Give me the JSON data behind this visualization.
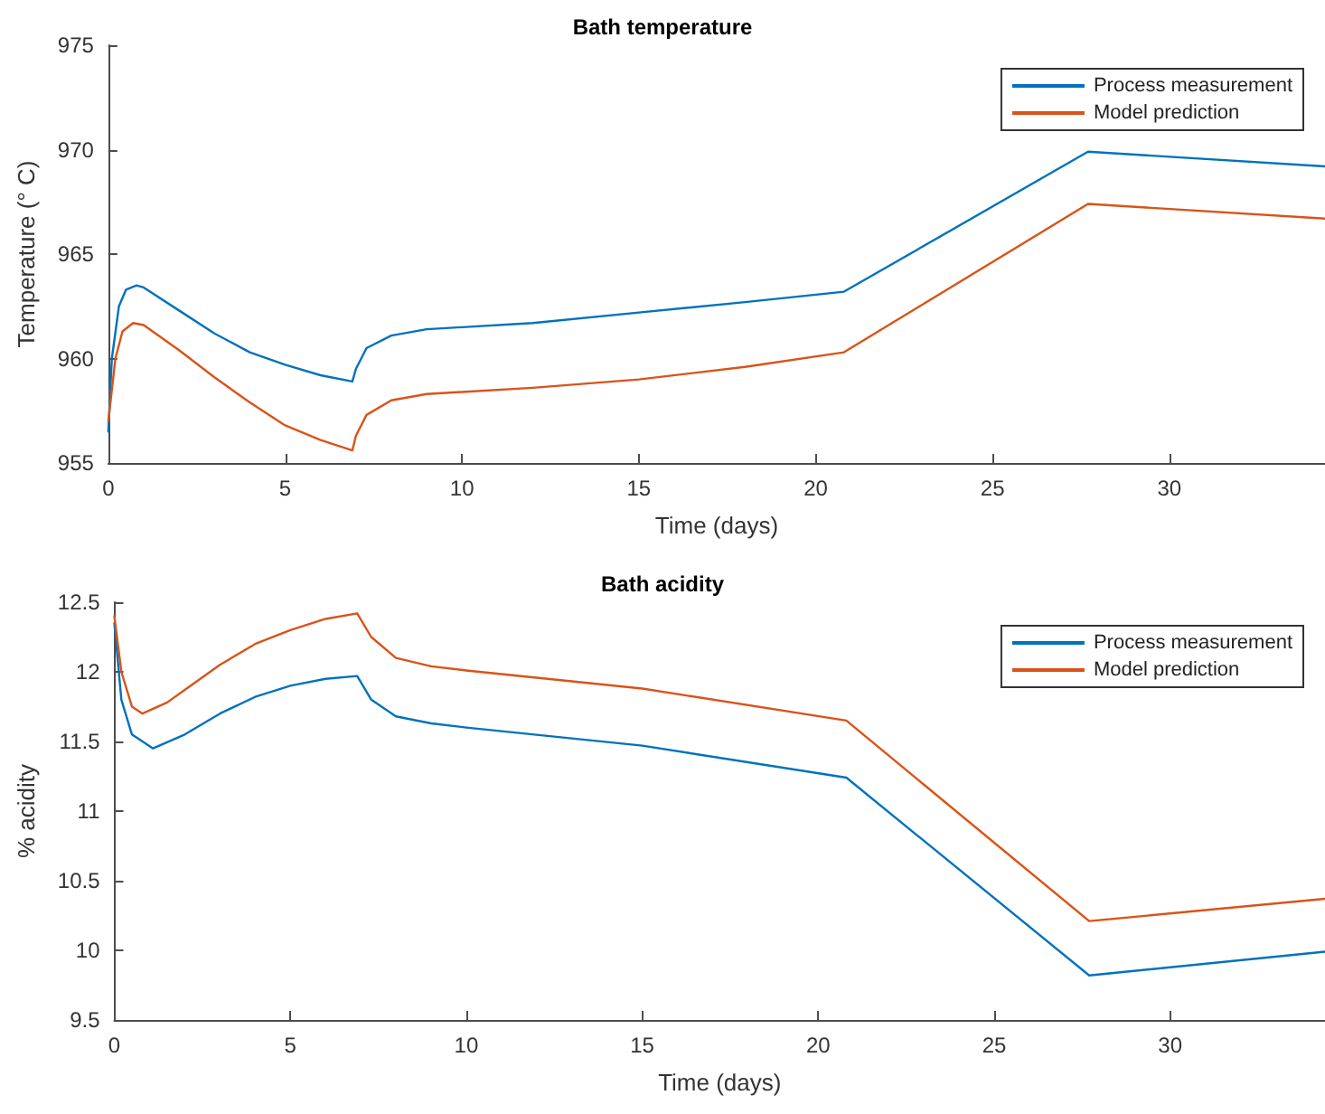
{
  "chart_data": [
    {
      "type": "line",
      "title": "Bath temperature",
      "xlabel": "Time (days)",
      "ylabel": "Temperature (° C)",
      "xlim": [
        0,
        34.4
      ],
      "xticks": [
        0,
        5,
        10,
        15,
        20,
        25,
        30
      ],
      "ylim": [
        955,
        975
      ],
      "yticks": [
        955,
        960,
        965,
        970,
        975
      ],
      "grid": false,
      "legend": "top right",
      "marker": "none",
      "series": [
        {
          "name": "Process measurement",
          "color": "#0072bd",
          "x": [
            0,
            0.1,
            0.3,
            0.5,
            0.8,
            1,
            2,
            3,
            4,
            5,
            6,
            6.9,
            7.0,
            7.3,
            8,
            9,
            10,
            12,
            15,
            18,
            20.8,
            27.7,
            34.4
          ],
          "values": [
            956.5,
            960,
            962.5,
            963.3,
            963.5,
            963.4,
            962.3,
            961.2,
            960.3,
            959.7,
            959.2,
            958.9,
            959.5,
            960.5,
            961.1,
            961.4,
            961.5,
            961.7,
            962.2,
            962.7,
            963.2,
            969.9,
            969.2
          ]
        },
        {
          "name": "Model prediction",
          "color": "#d95319",
          "x": [
            0,
            0.2,
            0.4,
            0.7,
            1,
            2,
            3,
            4,
            5,
            6,
            6.9,
            7.0,
            7.3,
            8,
            9,
            10,
            12,
            15,
            18,
            20.8,
            27.7,
            34.4
          ],
          "values": [
            957,
            960,
            961.3,
            961.7,
            961.6,
            960.4,
            959.1,
            957.9,
            956.8,
            956.1,
            955.6,
            956.3,
            957.3,
            958,
            958.3,
            958.4,
            958.6,
            959,
            959.6,
            960.3,
            967.4,
            966.7
          ]
        }
      ]
    },
    {
      "type": "line",
      "title": "Bath acidity",
      "xlabel": "Time (days)",
      "ylabel": "% acidity",
      "xlim": [
        0,
        34.4
      ],
      "xticks": [
        0,
        5,
        10,
        15,
        20,
        25,
        30
      ],
      "ylim": [
        9.5,
        12.5
      ],
      "yticks": [
        9.5,
        10,
        10.5,
        11,
        11.5,
        12,
        12.5
      ],
      "grid": false,
      "legend": "top right",
      "marker": "none",
      "series": [
        {
          "name": "Process measurement",
          "color": "#0072bd",
          "x": [
            0,
            0.2,
            0.5,
            1.1,
            2,
            3,
            4,
            5,
            6,
            6.9,
            7.3,
            8,
            9,
            10,
            15,
            20.8,
            27.7,
            34.4
          ],
          "values": [
            12.35,
            11.8,
            11.55,
            11.45,
            11.55,
            11.7,
            11.82,
            11.9,
            11.95,
            11.97,
            11.8,
            11.68,
            11.63,
            11.6,
            11.47,
            11.24,
            9.82,
            9.99
          ]
        },
        {
          "name": "Model prediction",
          "color": "#d95319",
          "x": [
            0,
            0.2,
            0.5,
            0.8,
            1.5,
            2,
            3,
            4,
            5,
            6,
            6.9,
            7.3,
            8,
            9,
            10,
            15,
            20.8,
            27.7,
            34.4
          ],
          "values": [
            12.4,
            12.0,
            11.75,
            11.7,
            11.78,
            11.87,
            12.05,
            12.2,
            12.3,
            12.38,
            12.42,
            12.25,
            12.1,
            12.04,
            12.01,
            11.88,
            11.65,
            10.21,
            10.37
          ]
        }
      ]
    }
  ]
}
